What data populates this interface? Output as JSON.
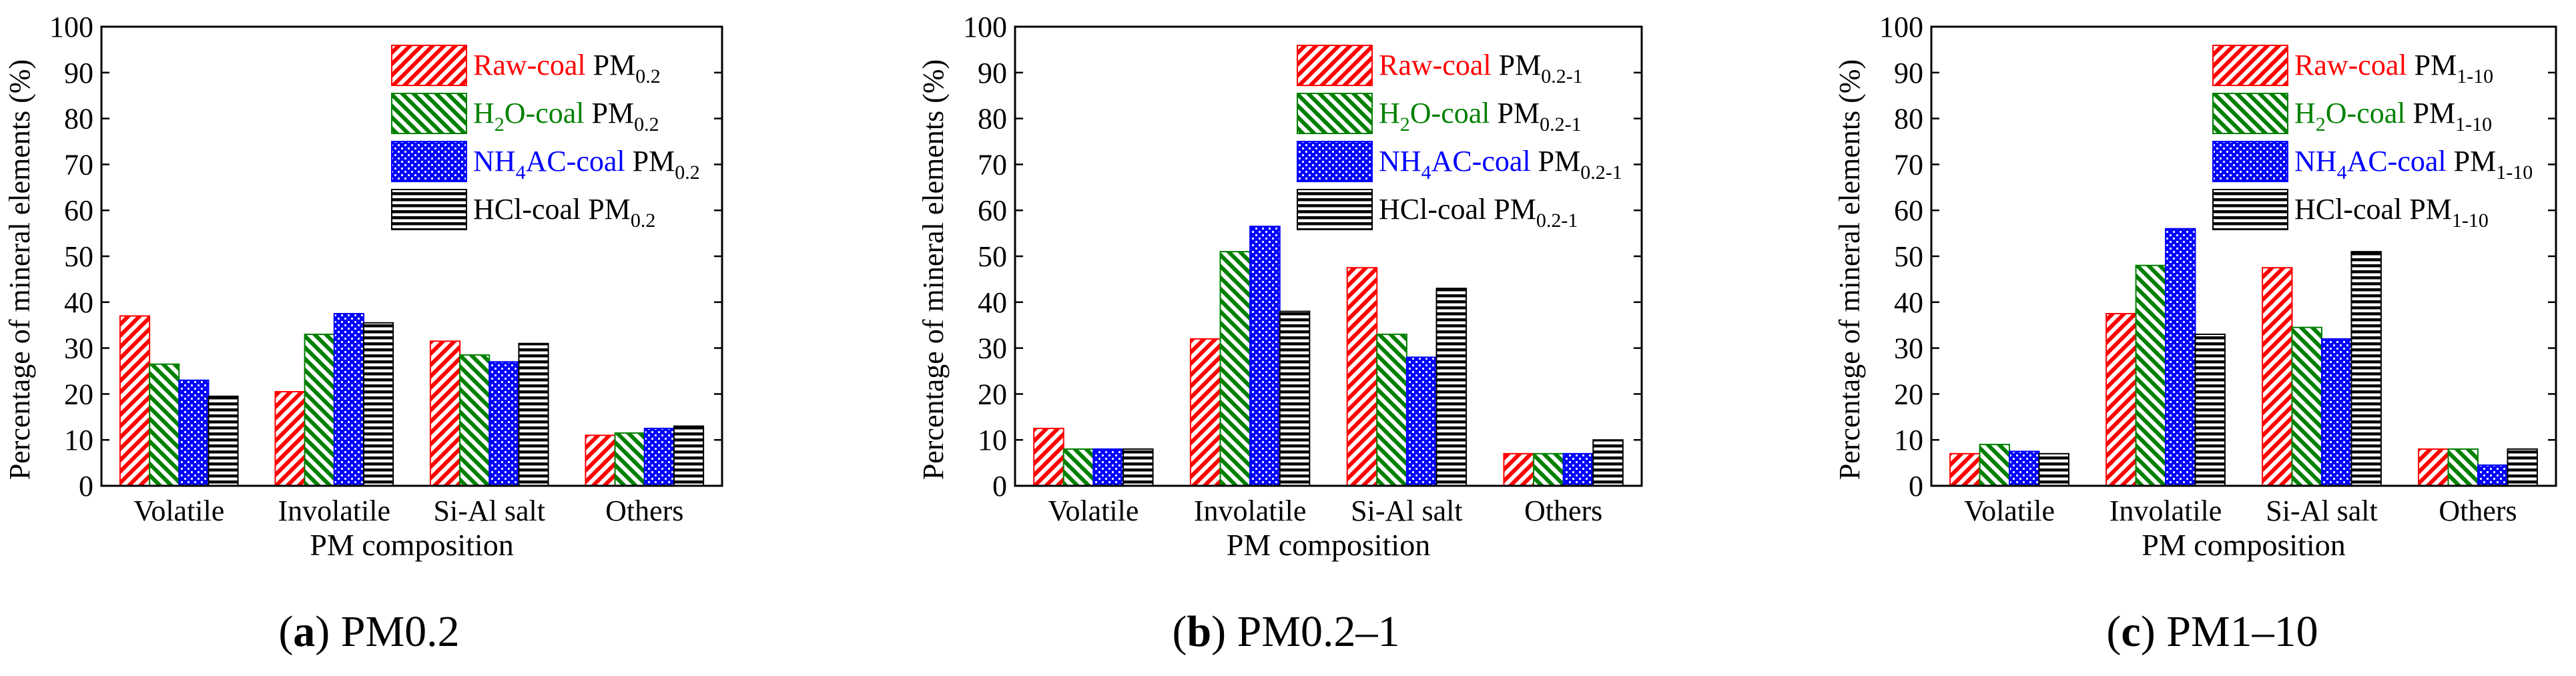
{
  "figure": {
    "panels": [
      {
        "letter": "(a)",
        "title": "PM0.2"
      },
      {
        "letter": "(b)",
        "title": "PM0.2–1"
      },
      {
        "letter": "(c)",
        "title": "PM1–10"
      }
    ]
  },
  "series_style": [
    {
      "key": "raw",
      "color": "#ff0000",
      "pattern": "diag"
    },
    {
      "key": "h2o",
      "color": "#008000",
      "pattern": "diagrev"
    },
    {
      "key": "nh4",
      "color": "#0000ff",
      "pattern": "dots"
    },
    {
      "key": "hcl",
      "color": "#000000",
      "pattern": "horiz"
    }
  ],
  "chart_data": [
    {
      "type": "bar",
      "title": "(a) PM0.2",
      "xlabel": "PM composition",
      "ylabel": "Percentage of mineral elements (%)",
      "ylim": [
        0,
        100
      ],
      "yticks": [
        "0",
        "10",
        "20",
        "30",
        "40",
        "50",
        "60",
        "70",
        "80",
        "90",
        "100"
      ],
      "categories": [
        "Volatile",
        "Involatile",
        "Si-Al salt",
        "Others"
      ],
      "legend_position": "top-right",
      "series": [
        {
          "name": "Raw-coal",
          "legend": {
            "colored": "Raw-coal",
            "pm": "PM",
            "sub": "0.2"
          },
          "values": [
            37,
            20.5,
            31.5,
            11
          ]
        },
        {
          "name": "H2O-coal",
          "legend": {
            "colored": "H",
            "colored_sub": "2",
            "colored_rest": "O-coal",
            "pm": "PM",
            "sub": "0.2"
          },
          "values": [
            26.5,
            33,
            28.5,
            11.5
          ]
        },
        {
          "name": "NH4AC-coal",
          "legend": {
            "colored": "NH",
            "colored_sub": "4",
            "colored_rest": "AC-coal",
            "pm": "PM",
            "sub": "0.2"
          },
          "values": [
            23,
            37.5,
            27,
            12.5
          ]
        },
        {
          "name": "HCl-coal",
          "legend": {
            "colored": "HCl-coal",
            "pm": "PM",
            "sub": "0.2"
          },
          "values": [
            19.5,
            35.5,
            31,
            13
          ]
        }
      ]
    },
    {
      "type": "bar",
      "title": "(b) PM0.2–1",
      "xlabel": "PM composition",
      "ylabel": "Percentage of mineral elements (%)",
      "ylim": [
        0,
        100
      ],
      "yticks": [
        "0",
        "10",
        "20",
        "30",
        "40",
        "50",
        "60",
        "70",
        "80",
        "90",
        "100"
      ],
      "categories": [
        "Volatile",
        "Involatile",
        "Si-Al salt",
        "Others"
      ],
      "legend_position": "top-right",
      "series": [
        {
          "name": "Raw-coal",
          "legend": {
            "colored": "Raw-coal",
            "pm": "PM",
            "sub": "0.2-1"
          },
          "values": [
            12.5,
            32,
            47.5,
            7
          ]
        },
        {
          "name": "H2O-coal",
          "legend": {
            "colored": "H",
            "colored_sub": "2",
            "colored_rest": "O-coal",
            "pm": "PM",
            "sub": "0.2-1"
          },
          "values": [
            8,
            51,
            33,
            7
          ]
        },
        {
          "name": "NH4AC-coal",
          "legend": {
            "colored": "NH",
            "colored_sub": "4",
            "colored_rest": "AC-coal",
            "pm": "PM",
            "sub": "0.2-1"
          },
          "values": [
            8,
            56.5,
            28,
            7
          ]
        },
        {
          "name": "HCl-coal",
          "legend": {
            "colored": "HCl-coal",
            "pm": "PM",
            "sub": "0.2-1"
          },
          "values": [
            8,
            38,
            43,
            10
          ]
        }
      ]
    },
    {
      "type": "bar",
      "title": "(c) PM1–10",
      "xlabel": "PM composition",
      "ylabel": "Percentage of mineral elements (%)",
      "ylim": [
        0,
        100
      ],
      "yticks": [
        "0",
        "10",
        "20",
        "30",
        "40",
        "50",
        "60",
        "70",
        "80",
        "90",
        "100"
      ],
      "categories": [
        "Volatile",
        "Involatile",
        "Si-Al salt",
        "Others"
      ],
      "legend_position": "top-right",
      "series": [
        {
          "name": "Raw-coal",
          "legend": {
            "colored": "Raw-coal",
            "pm": "PM",
            "sub": "1-10"
          },
          "values": [
            7,
            37.5,
            47.5,
            8
          ]
        },
        {
          "name": "H2O-coal",
          "legend": {
            "colored": "H",
            "colored_sub": "2",
            "colored_rest": "O-coal",
            "pm": "PM",
            "sub": "1-10"
          },
          "values": [
            9,
            48,
            34.5,
            8
          ]
        },
        {
          "name": "NH4AC-coal",
          "legend": {
            "colored": "NH",
            "colored_sub": "4",
            "colored_rest": "AC-coal",
            "pm": "PM",
            "sub": "1-10"
          },
          "values": [
            7.5,
            56,
            32,
            4.5
          ]
        },
        {
          "name": "HCl-coal",
          "legend": {
            "colored": "HCl-coal",
            "pm": "PM",
            "sub": "1-10"
          },
          "values": [
            7,
            33,
            51,
            8
          ]
        }
      ]
    }
  ]
}
